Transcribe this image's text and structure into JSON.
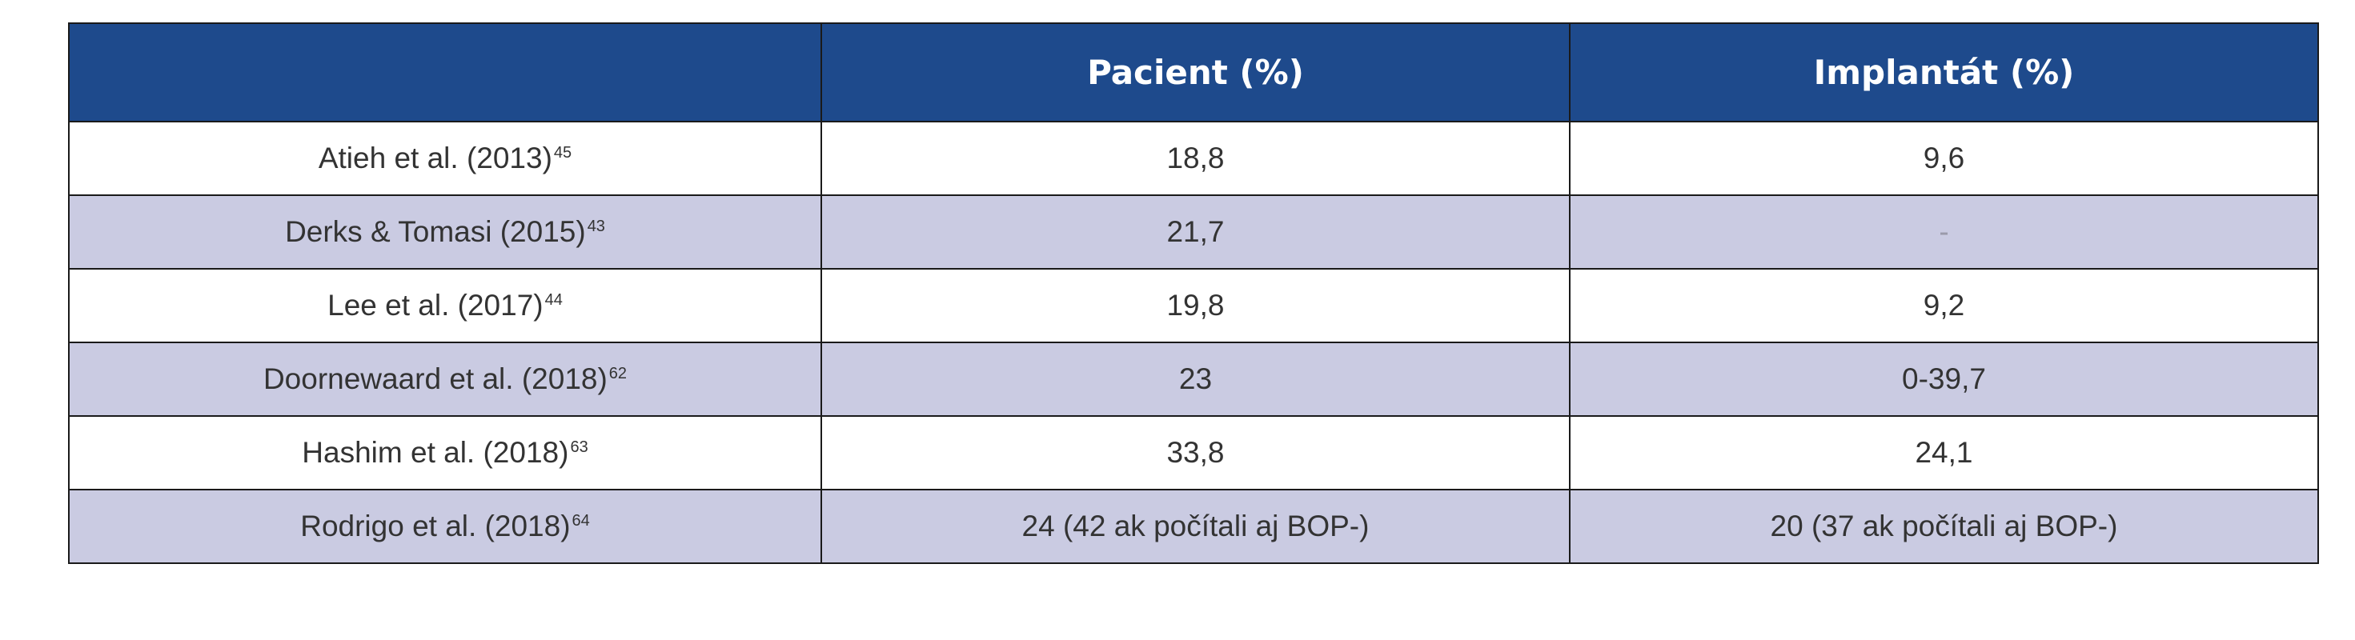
{
  "table": {
    "headers": [
      "",
      "Pacient (%)",
      "Implantát (%)"
    ],
    "rows": [
      {
        "study": "Atieh et al. (2013)",
        "ref": "45",
        "patient": "18,8",
        "implant": "9,6"
      },
      {
        "study": "Derks & Tomasi (2015)",
        "ref": "43",
        "patient": "21,7",
        "implant": "-"
      },
      {
        "study": "Lee et al. (2017)",
        "ref": "44",
        "patient": "19,8",
        "implant": "9,2"
      },
      {
        "study": "Doornewaard et al. (2018)",
        "ref": "62",
        "patient": "23",
        "implant": "0-39,7"
      },
      {
        "study": "Hashim et al. (2018)",
        "ref": "63",
        "patient": "33,8",
        "implant": "24,1"
      },
      {
        "study": "Rodrigo et al. (2018)",
        "ref": "64",
        "patient": "24 (42 ak počítali aj BOP-)",
        "implant": "20 (37 ak počítali aj BOP-)"
      }
    ]
  },
  "colors": {
    "header_bg": "#1e4a8c",
    "header_text": "#ffffff",
    "alt_row_bg": "#cacbe2",
    "row_bg": "#ffffff",
    "border": "#1a1a1a"
  }
}
